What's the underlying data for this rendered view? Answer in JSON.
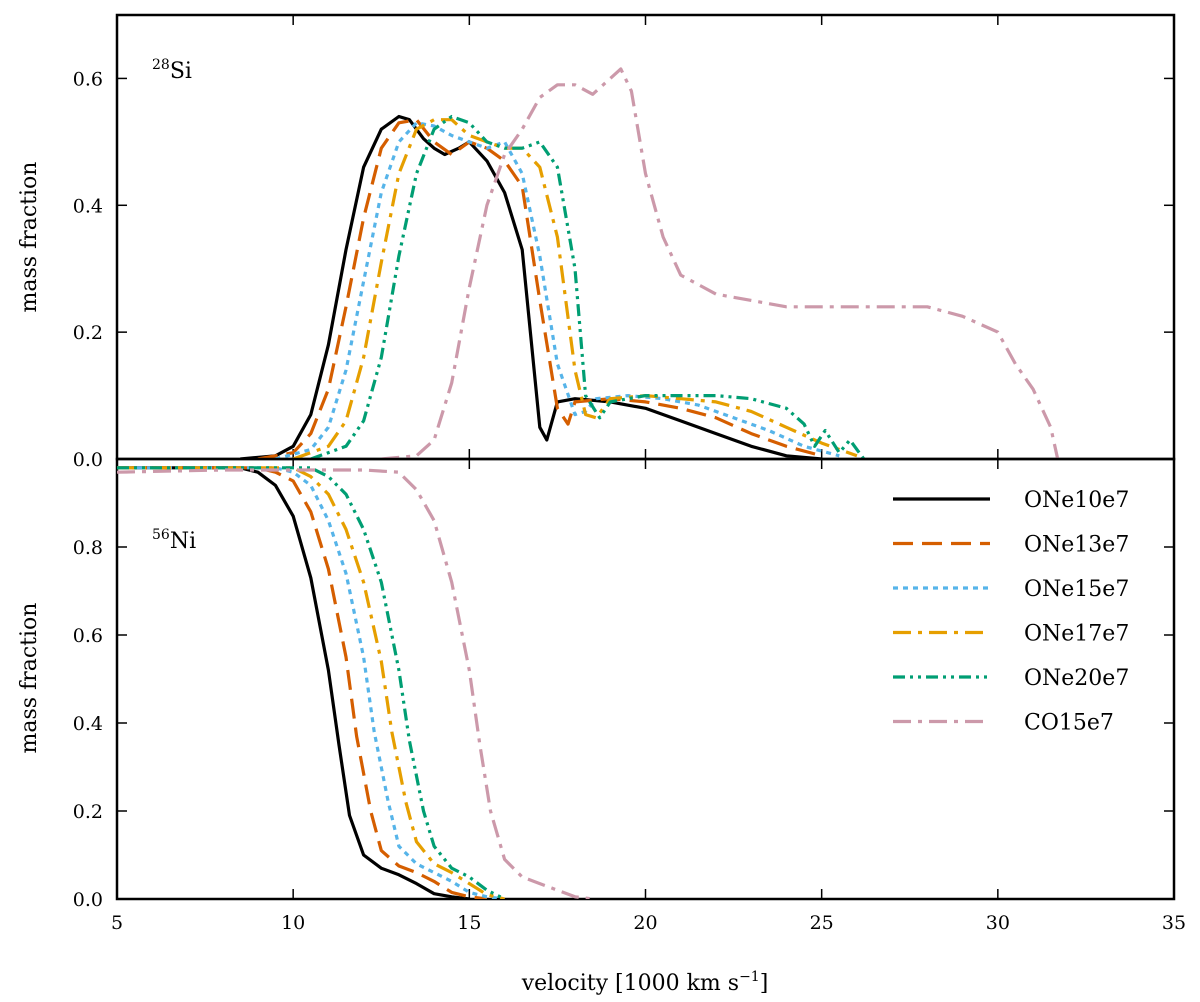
{
  "chart_data": [
    {
      "panel": "top",
      "type": "line",
      "species_mass_number": "28",
      "species_symbol": "Si",
      "xlabel_prefix": "velocity [1000 km s",
      "xlabel_exponent": "−1",
      "xlabel_suffix": "]",
      "ylabel": "mass fraction",
      "xlim": [
        5,
        35
      ],
      "ylim": [
        0,
        0.7
      ],
      "xticks": [
        "5",
        "10",
        "15",
        "20",
        "25",
        "30",
        "35"
      ],
      "yticks": [
        "0.0",
        "0.2",
        "0.4",
        "0.6"
      ],
      "grid": false,
      "series": [
        {
          "name": "ONe10e7",
          "color": "#000000",
          "dash": "solid",
          "x": [
            8.5,
            9.5,
            10.0,
            10.5,
            11.0,
            11.5,
            12.0,
            12.5,
            13.0,
            13.3,
            13.7,
            14.0,
            14.3,
            14.7,
            15.0,
            15.5,
            16.0,
            16.5,
            17.0,
            17.2,
            17.5,
            18.0,
            19.0,
            20.0,
            21.0,
            22.0,
            23.0,
            24.0,
            25.0
          ],
          "y": [
            0.0,
            0.005,
            0.02,
            0.07,
            0.18,
            0.33,
            0.46,
            0.52,
            0.54,
            0.535,
            0.505,
            0.49,
            0.48,
            0.49,
            0.5,
            0.47,
            0.42,
            0.33,
            0.05,
            0.03,
            0.09,
            0.095,
            0.09,
            0.08,
            0.06,
            0.04,
            0.02,
            0.005,
            0.0
          ]
        },
        {
          "name": "ONe13e7",
          "color": "#D55E00",
          "dash": "long-dash",
          "x": [
            9.0,
            10.0,
            10.5,
            11.0,
            11.5,
            12.0,
            12.5,
            13.0,
            13.5,
            14.0,
            14.5,
            15.0,
            15.5,
            16.0,
            16.5,
            17.0,
            17.5,
            17.8,
            18.0,
            19.0,
            20.0,
            21.0,
            22.0,
            23.0,
            24.0,
            25.0
          ],
          "y": [
            0.0,
            0.01,
            0.04,
            0.11,
            0.24,
            0.38,
            0.49,
            0.53,
            0.535,
            0.5,
            0.48,
            0.5,
            0.49,
            0.47,
            0.43,
            0.25,
            0.08,
            0.055,
            0.09,
            0.095,
            0.09,
            0.08,
            0.065,
            0.04,
            0.02,
            0.005
          ]
        },
        {
          "name": "ONe15e7",
          "color": "#56B4E9",
          "dash": "dotted",
          "x": [
            9.5,
            10.5,
            11.0,
            11.5,
            12.0,
            12.5,
            13.0,
            13.5,
            14.0,
            14.5,
            15.0,
            15.5,
            16.0,
            16.5,
            17.0,
            17.5,
            18.0,
            18.3,
            18.6,
            19.5,
            20.5,
            21.5,
            22.5,
            23.5,
            24.5,
            25.5
          ],
          "y": [
            0.0,
            0.015,
            0.05,
            0.14,
            0.28,
            0.42,
            0.5,
            0.53,
            0.525,
            0.51,
            0.5,
            0.49,
            0.5,
            0.45,
            0.32,
            0.15,
            0.07,
            0.075,
            0.095,
            0.1,
            0.095,
            0.085,
            0.065,
            0.045,
            0.02,
            0.005
          ]
        },
        {
          "name": "ONe17e7",
          "color": "#E69F00",
          "dash": "dash-dot",
          "x": [
            10.0,
            11.0,
            11.5,
            12.0,
            12.5,
            13.0,
            13.5,
            14.0,
            14.5,
            15.0,
            15.5,
            16.0,
            16.5,
            17.0,
            17.5,
            18.0,
            18.3,
            18.6,
            19.0,
            20.0,
            21.0,
            22.0,
            23.0,
            24.0,
            25.0,
            26.0
          ],
          "y": [
            0.0,
            0.02,
            0.06,
            0.16,
            0.31,
            0.45,
            0.52,
            0.535,
            0.535,
            0.51,
            0.5,
            0.49,
            0.49,
            0.46,
            0.35,
            0.14,
            0.07,
            0.065,
            0.095,
            0.1,
            0.095,
            0.09,
            0.075,
            0.05,
            0.025,
            0.005
          ]
        },
        {
          "name": "ONe20e7",
          "color": "#009E73",
          "dash": "dash-dot-dot",
          "x": [
            10.5,
            11.5,
            12.0,
            12.5,
            13.0,
            13.5,
            14.0,
            14.5,
            15.0,
            15.5,
            16.0,
            16.5,
            17.0,
            17.5,
            18.0,
            18.3,
            18.7,
            19.0,
            20.0,
            21.0,
            22.0,
            23.0,
            24.0,
            24.5,
            24.8,
            25.1,
            25.5,
            25.8,
            26.2
          ],
          "y": [
            0.0,
            0.02,
            0.06,
            0.16,
            0.32,
            0.45,
            0.52,
            0.54,
            0.53,
            0.5,
            0.49,
            0.49,
            0.5,
            0.46,
            0.3,
            0.1,
            0.065,
            0.09,
            0.1,
            0.1,
            0.1,
            0.095,
            0.08,
            0.055,
            0.02,
            0.045,
            0.01,
            0.03,
            0.0
          ]
        },
        {
          "name": "CO15e7",
          "color": "#CC99AA",
          "dash": "dash-dot",
          "x": [
            12.5,
            13.5,
            14.0,
            14.5,
            15.0,
            15.5,
            16.0,
            16.5,
            17.0,
            17.5,
            18.0,
            18.5,
            19.0,
            19.3,
            19.6,
            20.0,
            20.5,
            21.0,
            22.0,
            24.0,
            26.0,
            28.0,
            29.0,
            30.0,
            30.5,
            31.0,
            31.5,
            31.7
          ],
          "y": [
            0.0,
            0.005,
            0.03,
            0.12,
            0.27,
            0.4,
            0.48,
            0.52,
            0.57,
            0.59,
            0.59,
            0.575,
            0.6,
            0.615,
            0.58,
            0.45,
            0.35,
            0.29,
            0.26,
            0.24,
            0.24,
            0.24,
            0.225,
            0.2,
            0.15,
            0.11,
            0.05,
            0.0
          ]
        }
      ]
    },
    {
      "panel": "bottom",
      "type": "line",
      "species_mass_number": "56",
      "species_symbol": "Ni",
      "ylabel": "mass fraction",
      "xlim": [
        5,
        35
      ],
      "ylim": [
        0,
        1.0
      ],
      "xticks": [
        "5",
        "10",
        "15",
        "20",
        "25",
        "30",
        "35"
      ],
      "yticks": [
        "0.0",
        "0.2",
        "0.4",
        "0.6",
        "0.8"
      ],
      "grid": false,
      "legend_position": "upper-right",
      "series": [
        {
          "name": "ONe10e7",
          "color": "#000000",
          "dash": "solid",
          "x": [
            5.0,
            7.0,
            8.5,
            9.0,
            9.5,
            10.0,
            10.5,
            11.0,
            11.3,
            11.6,
            12.0,
            12.5,
            13.0,
            13.5,
            14.0,
            14.5,
            15.0
          ],
          "y": [
            0.98,
            0.98,
            0.98,
            0.97,
            0.94,
            0.87,
            0.73,
            0.52,
            0.35,
            0.19,
            0.1,
            0.07,
            0.055,
            0.035,
            0.012,
            0.005,
            0.0
          ]
        },
        {
          "name": "ONe13e7",
          "color": "#D55E00",
          "dash": "long-dash",
          "x": [
            5.0,
            9.0,
            9.5,
            10.0,
            10.5,
            11.0,
            11.5,
            11.8,
            12.2,
            12.5,
            13.0,
            13.5,
            14.0,
            14.5,
            15.0,
            15.5
          ],
          "y": [
            0.98,
            0.98,
            0.97,
            0.95,
            0.88,
            0.75,
            0.55,
            0.37,
            0.2,
            0.11,
            0.075,
            0.06,
            0.04,
            0.015,
            0.005,
            0.0
          ]
        },
        {
          "name": "ONe15e7",
          "color": "#56B4E9",
          "dash": "dotted",
          "x": [
            5.0,
            9.5,
            10.0,
            10.5,
            11.0,
            11.5,
            12.0,
            12.3,
            12.7,
            13.0,
            13.5,
            14.0,
            14.5,
            15.0,
            15.5,
            16.0
          ],
          "y": [
            0.98,
            0.98,
            0.97,
            0.94,
            0.86,
            0.74,
            0.55,
            0.38,
            0.22,
            0.12,
            0.08,
            0.06,
            0.04,
            0.015,
            0.005,
            0.0
          ]
        },
        {
          "name": "ONe17e7",
          "color": "#E69F00",
          "dash": "dash-dot",
          "x": [
            5.0,
            10.0,
            10.5,
            11.0,
            11.5,
            12.0,
            12.5,
            12.8,
            13.2,
            13.5,
            14.0,
            14.5,
            15.0,
            15.5,
            16.0
          ],
          "y": [
            0.98,
            0.98,
            0.96,
            0.92,
            0.84,
            0.72,
            0.54,
            0.38,
            0.22,
            0.13,
            0.08,
            0.06,
            0.035,
            0.01,
            0.0
          ]
        },
        {
          "name": "ONe20e7",
          "color": "#009E73",
          "dash": "dash-dot-dot",
          "x": [
            5.0,
            10.0,
            10.5,
            11.0,
            11.5,
            12.0,
            12.5,
            13.0,
            13.3,
            13.7,
            14.0,
            14.5,
            15.0,
            15.5,
            16.0
          ],
          "y": [
            0.98,
            0.98,
            0.98,
            0.96,
            0.92,
            0.84,
            0.72,
            0.52,
            0.36,
            0.2,
            0.12,
            0.07,
            0.05,
            0.02,
            0.0
          ]
        },
        {
          "name": "CO15e7",
          "color": "#CC99AA",
          "dash": "dash-dot",
          "x": [
            5.0,
            8.0,
            10.0,
            12.0,
            13.0,
            13.5,
            14.0,
            14.5,
            15.0,
            15.3,
            15.6,
            16.0,
            16.5,
            17.0,
            17.5,
            18.0,
            18.5
          ],
          "y": [
            0.97,
            0.975,
            0.975,
            0.975,
            0.97,
            0.93,
            0.86,
            0.72,
            0.52,
            0.35,
            0.2,
            0.09,
            0.05,
            0.035,
            0.02,
            0.005,
            0.0
          ]
        }
      ]
    }
  ]
}
